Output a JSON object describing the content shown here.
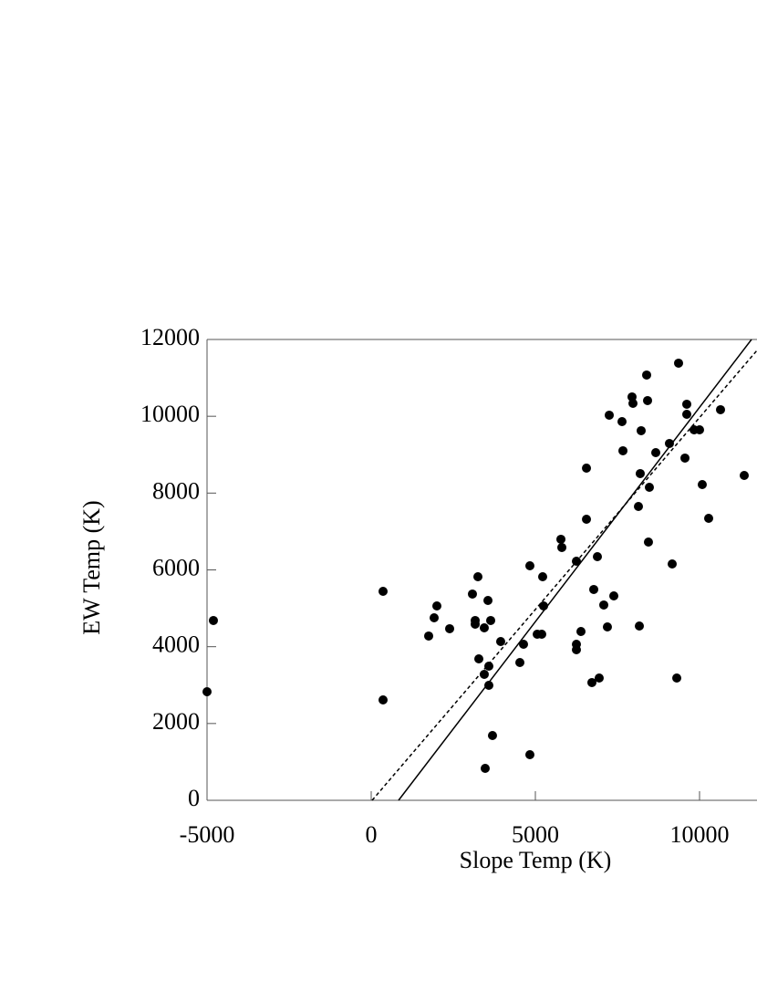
{
  "chart_data": {
    "type": "scatter",
    "xlabel": "Slope Temp (K)",
    "ylabel": "EW Temp (K)",
    "xlim": [
      -5000,
      11750
    ],
    "ylim": [
      0,
      12000
    ],
    "xticks": [
      -5000,
      0,
      5000,
      10000
    ],
    "yticks": [
      0,
      2000,
      4000,
      6000,
      8000,
      10000,
      12000
    ],
    "color": "#000000",
    "x": [
      -5000,
      -4806,
      361,
      361,
      1750,
      1917,
      2000,
      2389,
      3083,
      3167,
      3167,
      3250,
      3278,
      3444,
      3444,
      3472,
      3556,
      3583,
      3583,
      3639,
      3694,
      3944,
      4528,
      4639,
      4833,
      4833,
      5056,
      5194,
      5222,
      5250,
      5778,
      5806,
      6250,
      6250,
      6250,
      6389,
      6556,
      6556,
      6722,
      6778,
      6889,
      6944,
      7083,
      7194,
      7250,
      7389,
      7639,
      7667,
      7944,
      7972,
      8167,
      8139,
      8194,
      8222,
      8389,
      8417,
      8444,
      8472,
      8667,
      9083,
      9167,
      9306,
      9361,
      9556,
      9611,
      9611,
      9833,
      10000,
      10083,
      10278,
      10639,
      11361
    ],
    "y": [
      2828,
      4682,
      2614,
      5442,
      4278,
      4753,
      5062,
      4468,
      5371,
      4682,
      4587,
      5822,
      3683,
      4491,
      3280,
      832,
      5204,
      3493,
      2994,
      4682,
      1687,
      4135,
      3588,
      4064,
      1188,
      6107,
      4325,
      4325,
      5822,
      5062,
      6797,
      6583,
      4064,
      3921,
      6226,
      4396,
      8650,
      7319,
      3066,
      5490,
      6345,
      3184,
      5086,
      4515,
      10029,
      5323,
      9862,
      9102,
      10504,
      10337,
      4539,
      7652,
      8508,
      9625,
      11074,
      10409,
      6725,
      8151,
      9054,
      9292,
      6155,
      3184,
      11383,
      8912,
      10314,
      10052,
      9648,
      9648,
      8222,
      7343,
      10171,
      8460
    ],
    "fit_lines": [
      {
        "style": "solid",
        "x": [
          833,
          11583
        ],
        "y": [
          0,
          12000
        ]
      },
      {
        "style": "dashed",
        "x": [
          28,
          11750
        ],
        "y": [
          0,
          11716
        ]
      }
    ]
  }
}
